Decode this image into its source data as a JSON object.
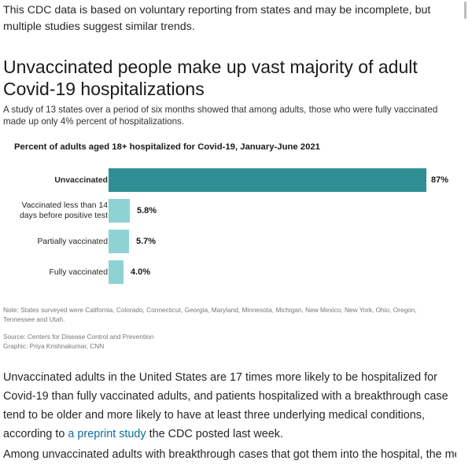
{
  "intro": {
    "text": "This CDC data is based on voluntary reporting from states and may be incomplete, but multiple studies suggest similar trends."
  },
  "headline": "Unvaccinated people make up vast majority of adult Covid-19 hospitalizations",
  "dek": "A study of 13 states over a period of six months showed that among adults, those who were fully vaccinated made up only 4% percent of hospitalizations.",
  "colors": {
    "unvaccinated_bar": "#2f8f94",
    "other_bar": "#8fd2d4"
  },
  "chart_data": {
    "type": "bar",
    "orientation": "horizontal",
    "title": "Percent of adults aged 18+ hospitalized for Covid-19, January-June 2021",
    "categories": [
      "Unvaccinated",
      "Vaccinated less than 14 days before positive test",
      "Partially vaccinated",
      "Fully vaccinated"
    ],
    "values": [
      87,
      5.8,
      5.7,
      4.0
    ],
    "value_labels": [
      "87%",
      "5.8%",
      "5.7%",
      "4.0%"
    ],
    "xlim": [
      0,
      87
    ],
    "xlabel": "",
    "ylabel": ""
  },
  "notes": {
    "note": "Note: States surveyed were California, Colorado, Connecticut, Georgia, Maryland, Minnesota, Michigan, New Mexico, New York, Ohio, Oregon, Tennessee and Utah.",
    "source": "Source: Centers for Disease Control and Prevention",
    "graphic": "Graphic: Priya Krishnakumar, CNN"
  },
  "body": {
    "para_start": "Unvaccinated adults in the United States are 17 times more likely to be hospitalized for Covid-19 than fully vaccinated adults, and patients hospitalized with a breakthrough case tend to be older and more likely to have at least three underlying medical conditions, according to ",
    "link_text": "a preprint study",
    "para_end": " the CDC posted last week.",
    "cut_line": "Among unvaccinated adults with breakthrough cases that got them into the hospital, the median"
  }
}
